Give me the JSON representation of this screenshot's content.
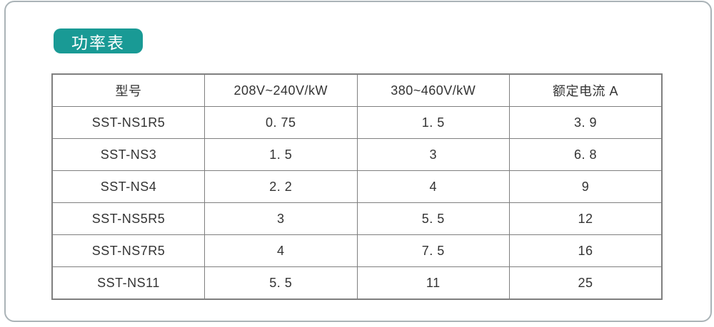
{
  "page": {
    "background_color": "#ffffff",
    "frame_border_color": "#aab3b7"
  },
  "badge": {
    "label": "功率表",
    "background_color": "#199a95",
    "text_color": "#ffffff"
  },
  "table": {
    "grid_color": "#7f7f7f",
    "headers": [
      "型号",
      "208V~240V/kW",
      "380~460V/kW",
      "额定电流 A"
    ],
    "rows": [
      [
        "SST-NS1R5",
        "0. 75",
        "1. 5",
        "3. 9"
      ],
      [
        "SST-NS3",
        "1. 5",
        "3",
        "6. 8"
      ],
      [
        "SST-NS4",
        "2. 2",
        "4",
        "9"
      ],
      [
        "SST-NS5R5",
        "3",
        "5. 5",
        "12"
      ],
      [
        "SST-NS7R5",
        "4",
        "7. 5",
        "16"
      ],
      [
        "SST-NS11",
        "5. 5",
        "11",
        "25"
      ]
    ]
  }
}
